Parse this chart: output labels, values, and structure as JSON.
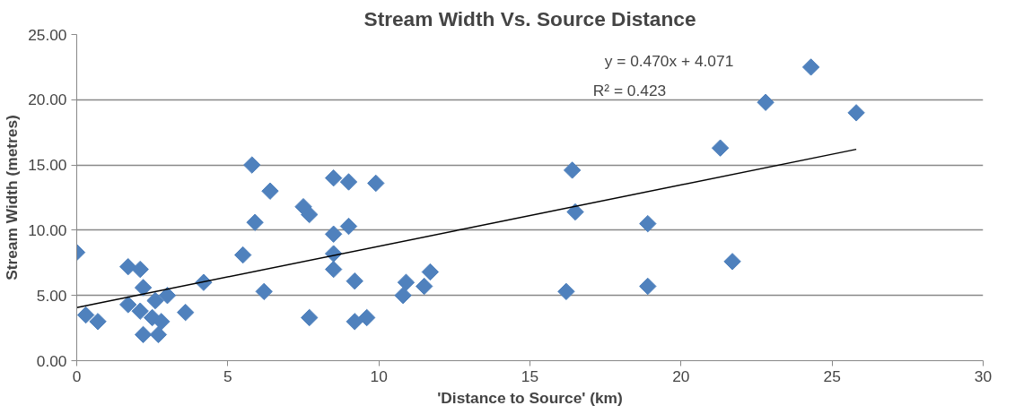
{
  "chart_data": {
    "type": "scatter",
    "title": "Stream Width Vs. Source Distance",
    "xlabel": "'Distance to Source' (km)",
    "ylabel": "Stream Width (metres)",
    "xlim": [
      0,
      30
    ],
    "xticks": [
      0,
      5,
      10,
      15,
      20,
      25,
      30
    ],
    "ylim": [
      0,
      25
    ],
    "yticks": [
      {
        "value": 0,
        "label": "0.00"
      },
      {
        "value": 5,
        "label": "5.00"
      },
      {
        "value": 10,
        "label": "10.00"
      },
      {
        "value": 15,
        "label": "15.00"
      },
      {
        "value": 20,
        "label": "20.00"
      },
      {
        "value": 25,
        "label": "25.00"
      }
    ],
    "grid": "y",
    "series": [
      {
        "marker": "diamond",
        "color": "#4f81bd",
        "x": [
          0.0,
          0.3,
          0.7,
          1.7,
          1.7,
          2.1,
          2.2,
          2.1,
          2.2,
          2.5,
          2.6,
          2.7,
          2.8,
          3.0,
          3.6,
          4.2,
          5.5,
          5.8,
          5.9,
          6.2,
          6.4,
          7.5,
          7.7,
          7.7,
          8.5,
          8.5,
          8.5,
          8.5,
          9.0,
          9.0,
          9.2,
          9.2,
          9.6,
          9.9,
          10.8,
          10.9,
          11.5,
          11.7,
          16.2,
          16.4,
          16.5,
          18.9,
          18.9,
          21.3,
          21.7,
          22.8,
          24.3,
          25.8
        ],
        "values": [
          8.3,
          3.5,
          3.0,
          7.2,
          4.3,
          7.0,
          5.6,
          3.8,
          2.0,
          3.3,
          4.6,
          2.0,
          3.0,
          5.0,
          3.7,
          6.0,
          8.1,
          15.0,
          10.6,
          5.3,
          13.0,
          11.8,
          11.2,
          3.3,
          14.0,
          9.7,
          8.2,
          7.0,
          13.7,
          10.3,
          6.1,
          3.0,
          3.3,
          13.6,
          5.0,
          6.0,
          5.7,
          6.8,
          5.3,
          14.6,
          11.4,
          10.5,
          5.7,
          16.3,
          7.6,
          19.8,
          22.5,
          19.0
        ]
      },
      {
        "type": "line",
        "marker": "none",
        "color": "#000000",
        "x": [
          0,
          25.8
        ],
        "values": [
          4.07,
          16.2
        ]
      }
    ],
    "annotations": [
      "y = 0.470x + 4.071",
      "R² = 0.423"
    ]
  }
}
